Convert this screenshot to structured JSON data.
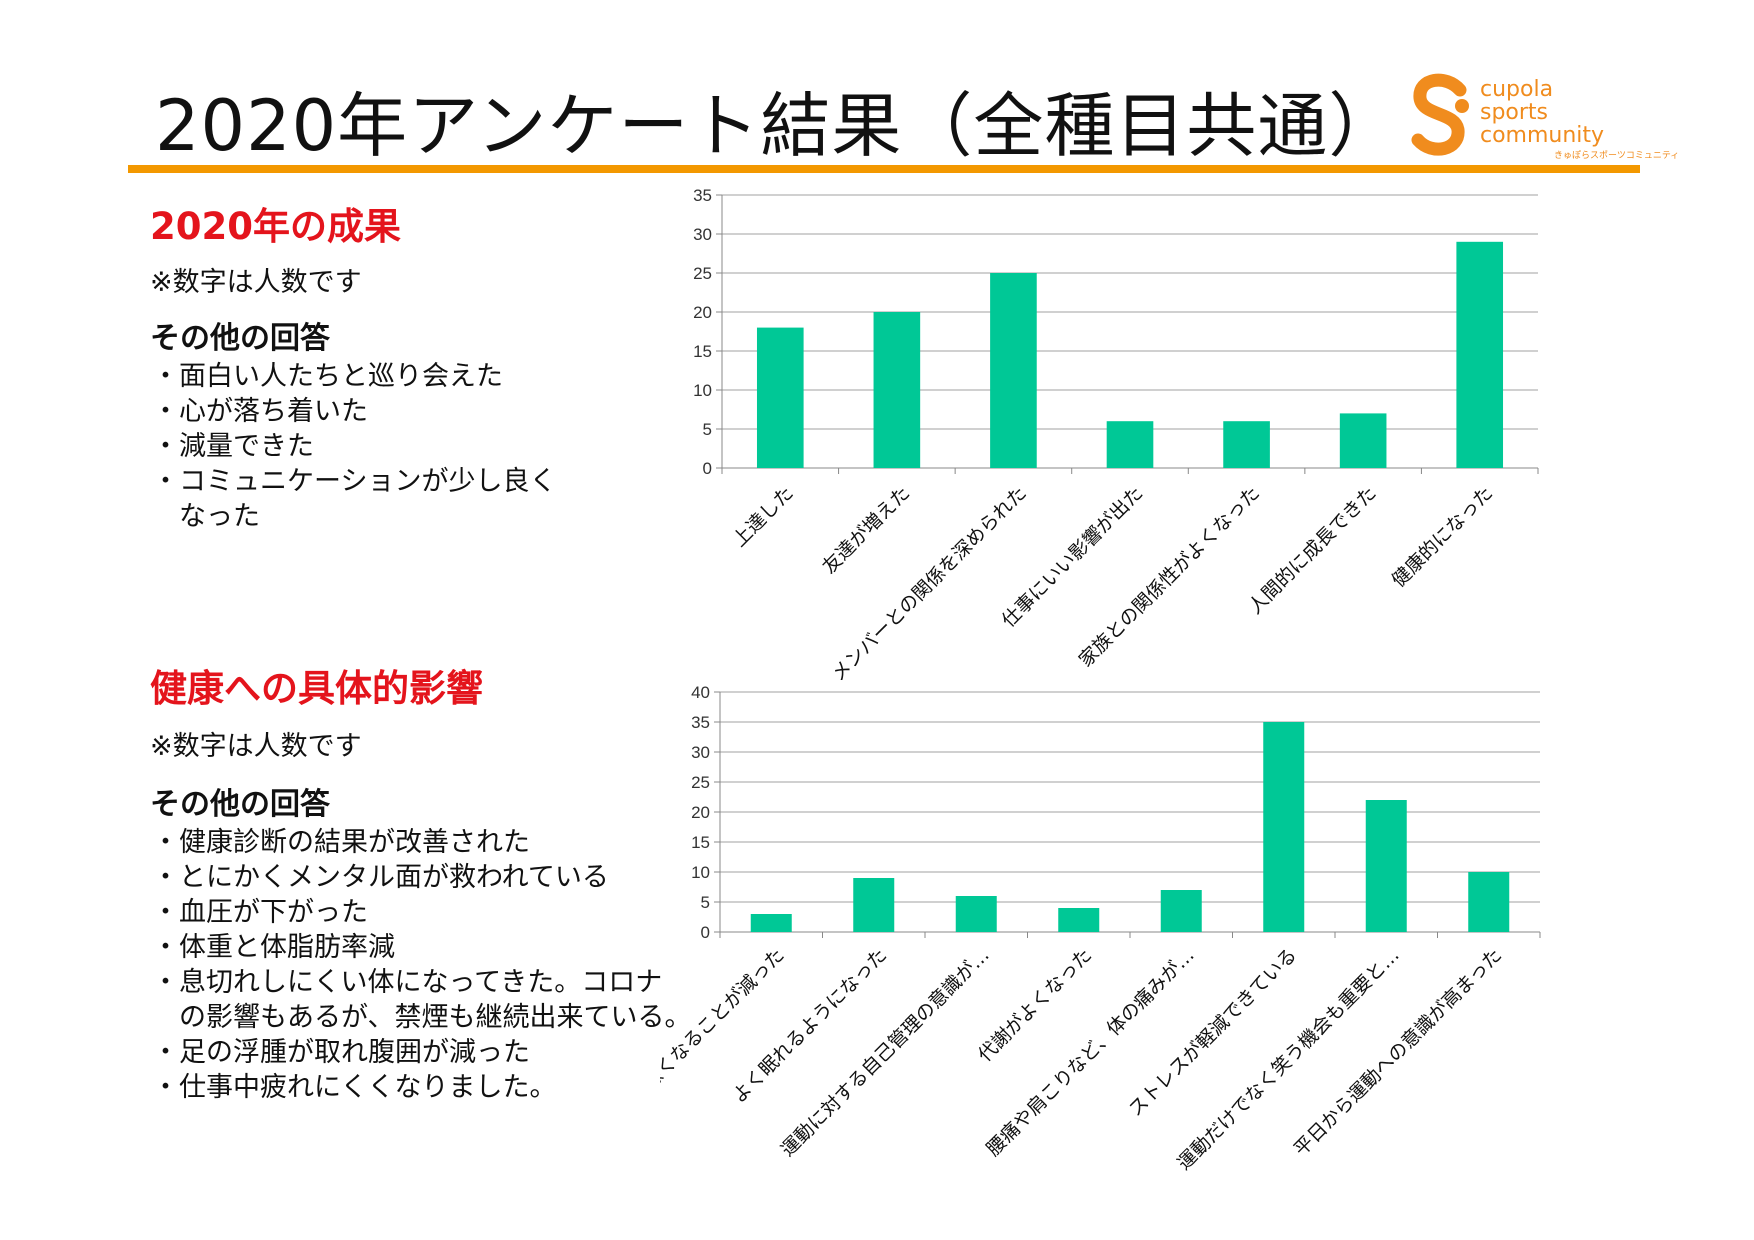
{
  "page": {
    "title": "2020年アンケート結果（全種目共通）"
  },
  "logo": {
    "line1": "cupola",
    "line2": "sports",
    "line3": "community",
    "sub": "きゅぽらスポーツコミュニティ",
    "colors": {
      "orange": "#F08C1E",
      "brand_rule": "#F39800"
    }
  },
  "section1": {
    "heading": "2020年の成果",
    "note": "※数字は人数です",
    "other_heading": "その他の回答",
    "items": [
      "面白い人たちと巡り会えた",
      "心が落ち着いた",
      "減量できた",
      "コミュニケーションが少し良く\nなった"
    ]
  },
  "section2": {
    "heading": "健康への具体的影響",
    "note": "※数字は人数です",
    "other_heading": "その他の回答",
    "items": [
      "健康診断の結果が改善された",
      "とにかくメンタル面が救われている",
      "血圧が下がった",
      "体重と体脂肪率減",
      "息切れしにくい体になってきた。コロナ\nの影響もあるが、禁煙も継続出来ている。",
      "足の浮腫が取れ腹囲が減った",
      "仕事中疲れにくくなりました。"
    ]
  },
  "chart_data": [
    {
      "type": "bar",
      "categories": [
        "上達した",
        "友達が増えた",
        "メンバーとの関係を深められた",
        "仕事にいい影響が出た",
        "家族との関係性がよくなった",
        "人間的に成長できた",
        "健康的になった"
      ],
      "values": [
        18,
        20,
        25,
        6,
        6,
        7,
        29
      ],
      "ylim": [
        0,
        35
      ],
      "yticks": [
        0,
        5,
        10,
        15,
        20,
        25,
        30,
        35
      ],
      "grid": true,
      "bar_color": "#00C896"
    },
    {
      "type": "bar",
      "categories": [
        "体調悪くなることが減った",
        "よく眠れるようになった",
        "運動に対する自己管理の意識が…",
        "代謝がよくなった",
        "腰痛や肩こりなど、体の痛みが…",
        "ストレスが軽減できている",
        "運動だけでなく笑う機会も重要と…",
        "平日から運動への意識が高まった"
      ],
      "values": [
        3,
        9,
        6,
        4,
        7,
        35,
        22,
        10
      ],
      "ylim": [
        0,
        40
      ],
      "yticks": [
        0,
        5,
        10,
        15,
        20,
        25,
        30,
        35,
        40
      ],
      "grid": true,
      "bar_color": "#00C896"
    }
  ]
}
